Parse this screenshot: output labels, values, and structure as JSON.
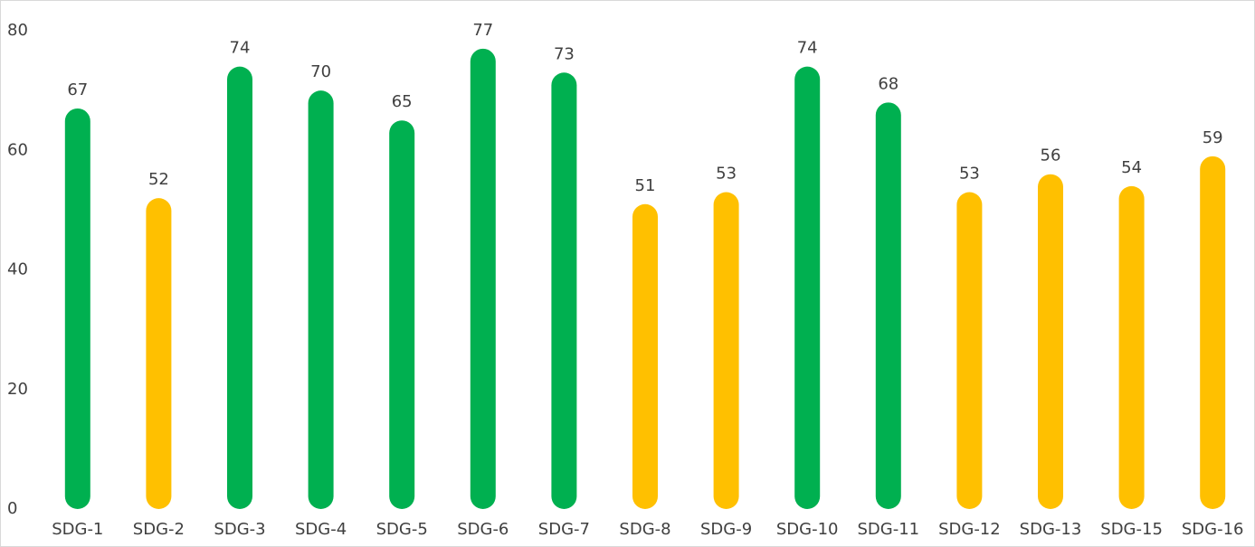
{
  "chart_data": {
    "type": "bar",
    "categories": [
      "SDG-1",
      "SDG-2",
      "SDG-3",
      "SDG-4",
      "SDG-5",
      "SDG-6",
      "SDG-7",
      "SDG-8",
      "SDG-9",
      "SDG-10",
      "SDG-11",
      "SDG-12",
      "SDG-13",
      "SDG-15",
      "SDG-16"
    ],
    "values": [
      67,
      52,
      74,
      70,
      65,
      77,
      73,
      51,
      53,
      74,
      68,
      53,
      56,
      54,
      59
    ],
    "colors": [
      "#00b050",
      "#ffc000",
      "#00b050",
      "#00b050",
      "#00b050",
      "#00b050",
      "#00b050",
      "#ffc000",
      "#ffc000",
      "#00b050",
      "#00b050",
      "#ffc000",
      "#ffc000",
      "#ffc000",
      "#ffc000"
    ],
    "ylim": [
      0,
      80
    ],
    "yticks": [
      0,
      20,
      40,
      60,
      80
    ],
    "grid": false
  }
}
